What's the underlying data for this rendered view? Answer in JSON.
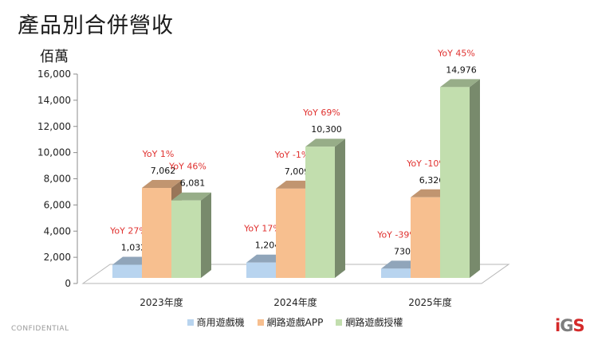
{
  "page": {
    "title": "產品別合併營收",
    "footer_label": "CONFIDENTIAL",
    "logo": {
      "i": "i",
      "g": "G",
      "s": "S"
    }
  },
  "chart_data": {
    "type": "bar",
    "unit_label": "佰萬",
    "categories": [
      "2023年度",
      "2024年度",
      "2025年度"
    ],
    "ylim": [
      0,
      16000
    ],
    "yticks": [
      0,
      2000,
      4000,
      6000,
      8000,
      10000,
      12000,
      14000,
      16000
    ],
    "ytick_labels": [
      "0",
      "2,000",
      "4,000",
      "6,000",
      "8,000",
      "10,000",
      "12,000",
      "14,000",
      "16,000"
    ],
    "legend_position": "bottom",
    "grid": false,
    "series": [
      {
        "name": "商用遊戲機",
        "color": "#b8d4ef",
        "values": [
          1032,
          1204,
          730
        ],
        "value_labels": [
          "1,032",
          "1,204",
          "730"
        ],
        "yoy_labels": [
          "YoY 27%",
          "YoY 17%",
          "YoY -39%"
        ]
      },
      {
        "name": "網路遊戲APP",
        "color": "#f7bf8f",
        "values": [
          7062,
          7009,
          6326
        ],
        "value_labels": [
          "7,062",
          "7,009",
          "6,326"
        ],
        "yoy_labels": [
          "YoY 1%",
          "YoY -1%",
          "YoY -10%"
        ]
      },
      {
        "name": "網路遊戲授權",
        "color": "#c2deae",
        "values": [
          6081,
          10300,
          14976
        ],
        "value_labels": [
          "6,081",
          "10,300",
          "14,976"
        ],
        "yoy_labels": [
          "YoY 46%",
          "YoY 69%",
          "YoY 45%"
        ]
      }
    ],
    "annotation_color": "#e0312f"
  }
}
